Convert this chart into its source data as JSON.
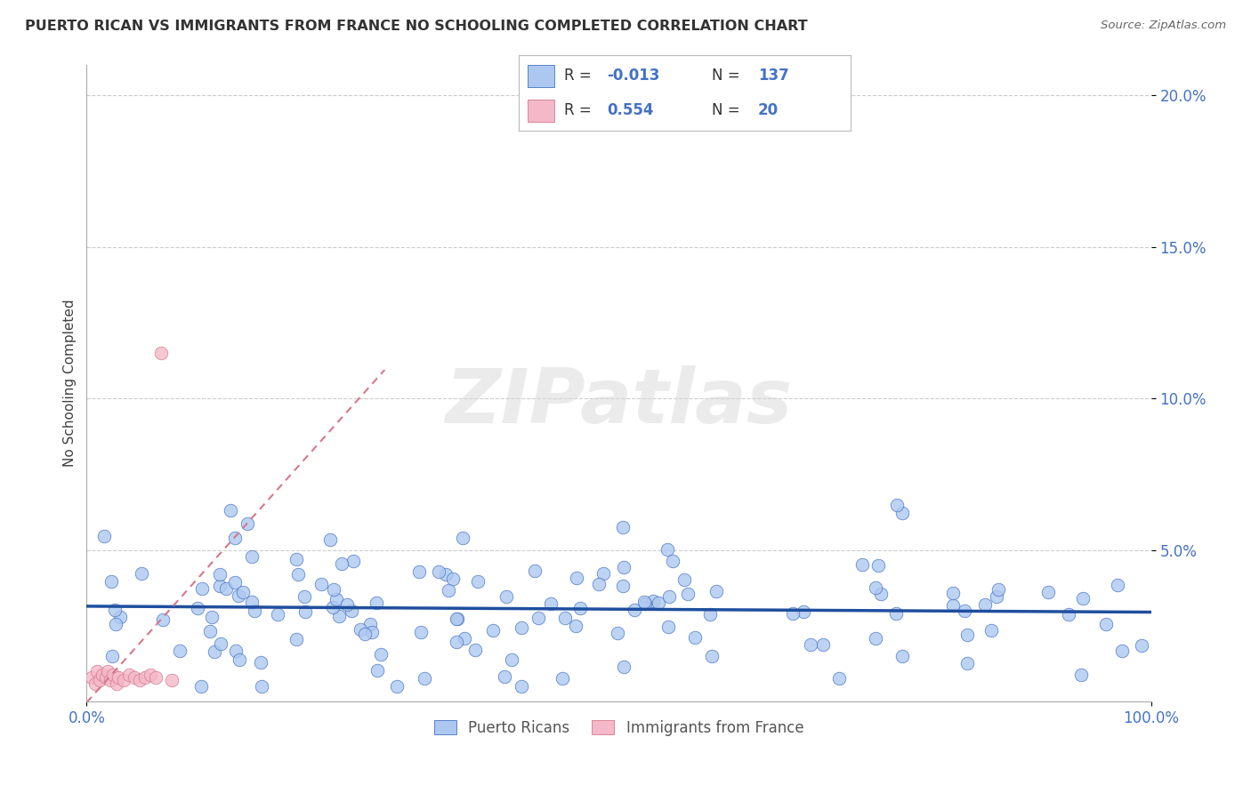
{
  "title": "PUERTO RICAN VS IMMIGRANTS FROM FRANCE NO SCHOOLING COMPLETED CORRELATION CHART",
  "source": "Source: ZipAtlas.com",
  "ylabel": "No Schooling Completed",
  "legend_labels": [
    "Puerto Ricans",
    "Immigrants from France"
  ],
  "blue_R": "-0.013",
  "blue_N": "137",
  "pink_R": "0.554",
  "pink_N": "20",
  "xlim": [
    0.0,
    1.0
  ],
  "ylim": [
    0.0,
    0.21
  ],
  "blue_color": "#adc8f0",
  "blue_edge_color": "#4472c4",
  "blue_line_color": "#1f4e9e",
  "pink_color": "#f4b8c8",
  "pink_edge_color": "#d4788a",
  "pink_line_color": "#d4788a",
  "watermark_color": "#d8d8d8",
  "background_color": "#ffffff",
  "grid_color": "#cccccc",
  "text_color": "#404040",
  "axis_label_color": "#4472c4",
  "title_color": "#333333"
}
